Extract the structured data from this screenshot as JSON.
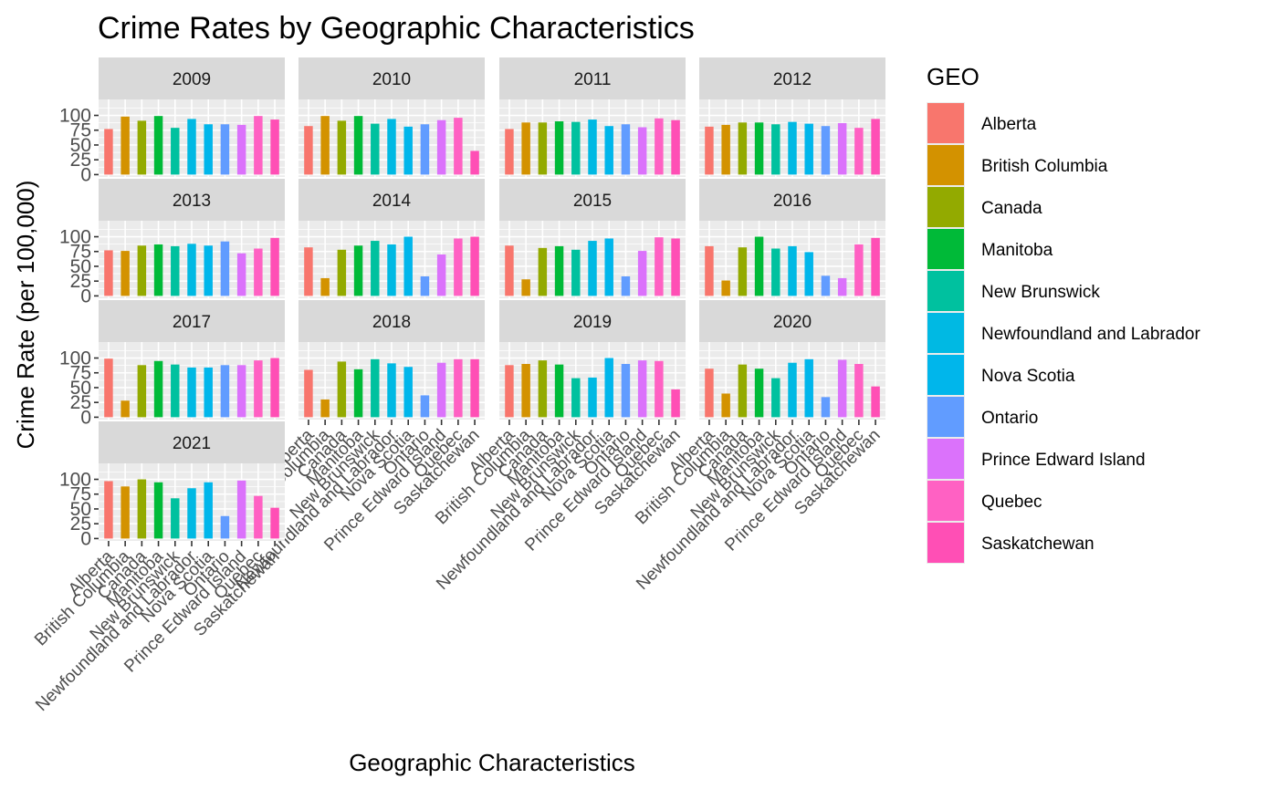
{
  "chart_data": {
    "type": "bar",
    "title": "Crime Rates by Geographic Characteristics",
    "xlabel": "Geographic Characteristics",
    "ylabel": "Crime Rate (per 100,000)",
    "ylim": [
      0,
      100
    ],
    "y_ticks": [
      "0",
      "25",
      "50",
      "75",
      "100"
    ],
    "grid": true,
    "legend_title": "GEO",
    "legend_position": "right",
    "categories": [
      "Alberta",
      "British Columbia",
      "Canada",
      "Manitoba",
      "New Brunswick",
      "Newfoundland and Labrador",
      "Nova Scotia",
      "Ontario",
      "Prince Edward Island",
      "Quebec",
      "Saskatchewan"
    ],
    "colors": [
      "#F8766D",
      "#D39200",
      "#93AA00",
      "#00BA38",
      "#00C19F",
      "#00B9E3",
      "#00B6EB",
      "#619CFF",
      "#DB72FB",
      "#FF61C3",
      "#FF4FB5"
    ],
    "panels": [
      {
        "label": "2009",
        "values": [
          77,
          98,
          91,
          99,
          79,
          94,
          85,
          85,
          84,
          99,
          93
        ]
      },
      {
        "label": "2010",
        "values": [
          82,
          99,
          91,
          99,
          86,
          94,
          81,
          85,
          92,
          96,
          40
        ]
      },
      {
        "label": "2011",
        "values": [
          77,
          88,
          88,
          90,
          89,
          93,
          82,
          85,
          80,
          95,
          92
        ]
      },
      {
        "label": "2012",
        "values": [
          81,
          84,
          88,
          88,
          85,
          89,
          86,
          82,
          87,
          79,
          94
        ]
      },
      {
        "label": "2013",
        "values": [
          77,
          76,
          85,
          87,
          84,
          88,
          85,
          92,
          72,
          80,
          98
        ]
      },
      {
        "label": "2014",
        "values": [
          82,
          30,
          78,
          85,
          93,
          87,
          100,
          33,
          70,
          97,
          100
        ]
      },
      {
        "label": "2015",
        "values": [
          85,
          28,
          81,
          84,
          78,
          93,
          97,
          33,
          76,
          99,
          97
        ]
      },
      {
        "label": "2016",
        "values": [
          84,
          26,
          82,
          100,
          80,
          84,
          74,
          34,
          30,
          87,
          98
        ]
      },
      {
        "label": "2017",
        "values": [
          99,
          28,
          88,
          95,
          89,
          84,
          84,
          88,
          88,
          96,
          100
        ]
      },
      {
        "label": "2018",
        "values": [
          80,
          30,
          94,
          81,
          98,
          91,
          85,
          37,
          92,
          98,
          98
        ]
      },
      {
        "label": "2019",
        "values": [
          88,
          90,
          96,
          89,
          66,
          67,
          100,
          90,
          96,
          95,
          47
        ]
      },
      {
        "label": "2020",
        "values": [
          82,
          40,
          89,
          82,
          66,
          92,
          98,
          34,
          97,
          90,
          52
        ]
      },
      {
        "label": "2021",
        "values": [
          97,
          88,
          100,
          95,
          68,
          85,
          95,
          38,
          98,
          72,
          52
        ]
      }
    ]
  }
}
